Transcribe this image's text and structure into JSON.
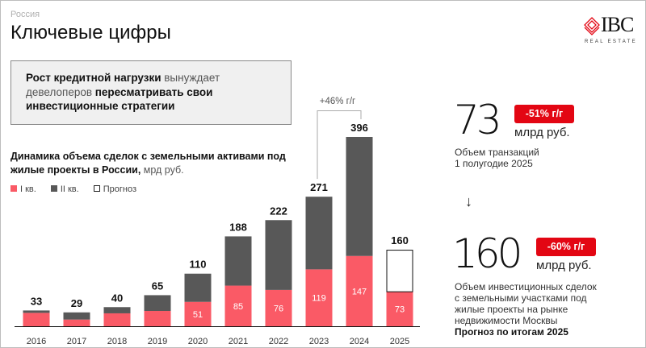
{
  "header": {
    "region": "Россия",
    "title": "Ключевые цифры",
    "logo_text": "IBC",
    "logo_sub": "REAL ESTATE"
  },
  "callout": {
    "part1": "Рост кредитной нагрузки",
    "part2": " вынуждает девелоперов ",
    "part3": "пересматривать свои инвестиционные стратегии"
  },
  "chart_title": {
    "bold": "Динамика объема сделок с земельными активами под жилые проекты в России,",
    "light": " мрд руб."
  },
  "colors": {
    "q1": "#fa5a66",
    "q2": "#585858",
    "forecast": "#ffffff",
    "accent": "#e30613"
  },
  "chart_data": {
    "type": "bar",
    "stacked": true,
    "title": "Динамика объема сделок с земельными активами под жилые проекты в России, млрд руб.",
    "categories": [
      "2016",
      "2017",
      "2018",
      "2019",
      "2020",
      "2021",
      "2022",
      "2023",
      "2024",
      "2025"
    ],
    "series": [
      {
        "name": "I кв.",
        "values": [
          28,
          14,
          27,
          32,
          51,
          85,
          76,
          119,
          147,
          73
        ],
        "labeled": [
          false,
          false,
          false,
          false,
          true,
          true,
          true,
          true,
          true,
          true
        ]
      },
      {
        "name": "II кв.",
        "values": [
          5,
          15,
          13,
          33,
          59,
          103,
          146,
          152,
          249,
          null
        ]
      },
      {
        "name": "Прогноз",
        "values": [
          null,
          null,
          null,
          null,
          null,
          null,
          null,
          null,
          null,
          87
        ]
      }
    ],
    "totals": [
      33,
      29,
      40,
      65,
      110,
      188,
      222,
      271,
      396,
      160
    ],
    "annotation": {
      "text": "+46% г/г",
      "from": "2023",
      "to": "2024"
    },
    "ylim": [
      0,
      400
    ],
    "grid": false,
    "legend_position": "top-left"
  },
  "legend": [
    "I кв.",
    "II кв.",
    "Прогноз"
  ],
  "kpi1": {
    "value": "73",
    "badge": "-51% г/г",
    "unit": "млрд руб.",
    "desc1": "Объем транзакций",
    "desc2": "1 полугодие 2025"
  },
  "kpi2": {
    "value": "160",
    "badge": "-60% г/г",
    "unit": "млрд руб.",
    "desc1": "Объем инвестиционных сделок",
    "desc2": "с земельными участками под",
    "desc3": "жилые проекты на рынке",
    "desc4": "недвижимости Москвы",
    "desc5": "Прогноз по итогам 2025"
  }
}
